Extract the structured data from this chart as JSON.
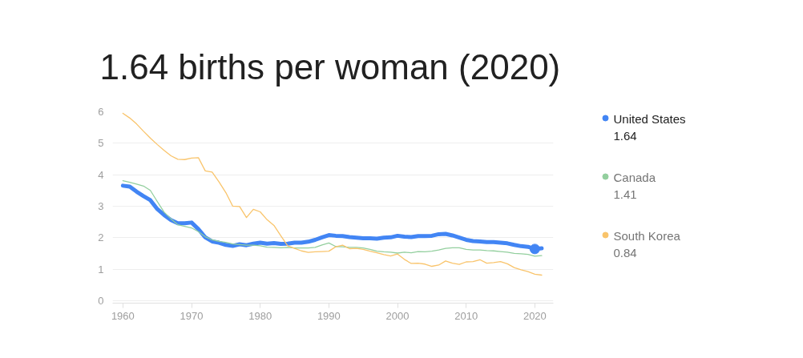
{
  "chart_data": {
    "type": "line",
    "title": "1.64 births per woman (2020)",
    "x": [
      1960,
      1961,
      1962,
      1963,
      1964,
      1965,
      1966,
      1967,
      1968,
      1969,
      1970,
      1971,
      1972,
      1973,
      1974,
      1975,
      1976,
      1977,
      1978,
      1979,
      1980,
      1981,
      1982,
      1983,
      1984,
      1985,
      1986,
      1987,
      1988,
      1989,
      1990,
      1991,
      1992,
      1993,
      1994,
      1995,
      1996,
      1997,
      1998,
      1999,
      2000,
      2001,
      2002,
      2003,
      2004,
      2005,
      2006,
      2007,
      2008,
      2009,
      2010,
      2011,
      2012,
      2013,
      2014,
      2015,
      2016,
      2017,
      2018,
      2019,
      2020,
      2021
    ],
    "series": [
      {
        "name": "United States",
        "color": "#4285f4",
        "values": [
          3.65,
          3.62,
          3.46,
          3.32,
          3.19,
          2.91,
          2.72,
          2.56,
          2.46,
          2.46,
          2.48,
          2.27,
          2.01,
          1.88,
          1.84,
          1.77,
          1.74,
          1.79,
          1.76,
          1.81,
          1.84,
          1.81,
          1.83,
          1.8,
          1.81,
          1.84,
          1.84,
          1.87,
          1.93,
          2.01,
          2.08,
          2.06,
          2.05,
          2.02,
          2.0,
          1.98,
          1.98,
          1.97,
          2.0,
          2.01,
          2.06,
          2.03,
          2.02,
          2.05,
          2.05,
          2.06,
          2.11,
          2.12,
          2.07,
          2.0,
          1.93,
          1.89,
          1.88,
          1.86,
          1.86,
          1.84,
          1.82,
          1.77,
          1.73,
          1.71,
          1.64,
          1.66
        ]
      },
      {
        "name": "Canada",
        "color": "#93cf9e",
        "values": [
          3.81,
          3.76,
          3.7,
          3.64,
          3.5,
          3.15,
          2.81,
          2.6,
          2.41,
          2.36,
          2.31,
          2.19,
          2.03,
          1.93,
          1.88,
          1.85,
          1.8,
          1.78,
          1.76,
          1.76,
          1.74,
          1.7,
          1.69,
          1.68,
          1.69,
          1.67,
          1.67,
          1.67,
          1.69,
          1.77,
          1.83,
          1.72,
          1.71,
          1.69,
          1.69,
          1.67,
          1.63,
          1.57,
          1.55,
          1.54,
          1.51,
          1.54,
          1.52,
          1.56,
          1.55,
          1.57,
          1.61,
          1.66,
          1.68,
          1.68,
          1.63,
          1.61,
          1.61,
          1.59,
          1.58,
          1.56,
          1.54,
          1.5,
          1.49,
          1.47,
          1.41,
          1.43
        ]
      },
      {
        "name": "South Korea",
        "color": "#f9c46b",
        "values": [
          5.95,
          5.8,
          5.61,
          5.38,
          5.16,
          4.96,
          4.77,
          4.6,
          4.49,
          4.48,
          4.53,
          4.54,
          4.12,
          4.08,
          3.77,
          3.43,
          3.0,
          2.99,
          2.64,
          2.9,
          2.82,
          2.57,
          2.39,
          2.06,
          1.74,
          1.66,
          1.58,
          1.53,
          1.55,
          1.56,
          1.57,
          1.71,
          1.76,
          1.65,
          1.66,
          1.63,
          1.57,
          1.52,
          1.46,
          1.42,
          1.48,
          1.31,
          1.18,
          1.19,
          1.16,
          1.09,
          1.13,
          1.26,
          1.19,
          1.15,
          1.23,
          1.24,
          1.3,
          1.19,
          1.21,
          1.24,
          1.17,
          1.05,
          0.98,
          0.92,
          0.84,
          0.81
        ]
      },
      {
        "type": "scatter",
        "color": "#4285f4",
        "x": [
          2020
        ],
        "values": [
          1.64
        ]
      }
    ],
    "annotations": [
      "1.64",
      "1.41",
      "0.84"
    ],
    "xlim": [
      1958.5,
      2022.7
    ],
    "ylim": [
      -0.08,
      6
    ],
    "xticks": [
      1960,
      1970,
      1980,
      1990,
      2000,
      2010,
      2020
    ],
    "yticks": [
      0,
      1,
      2,
      3,
      4,
      5,
      6
    ],
    "grid": "y",
    "legend": "right"
  }
}
